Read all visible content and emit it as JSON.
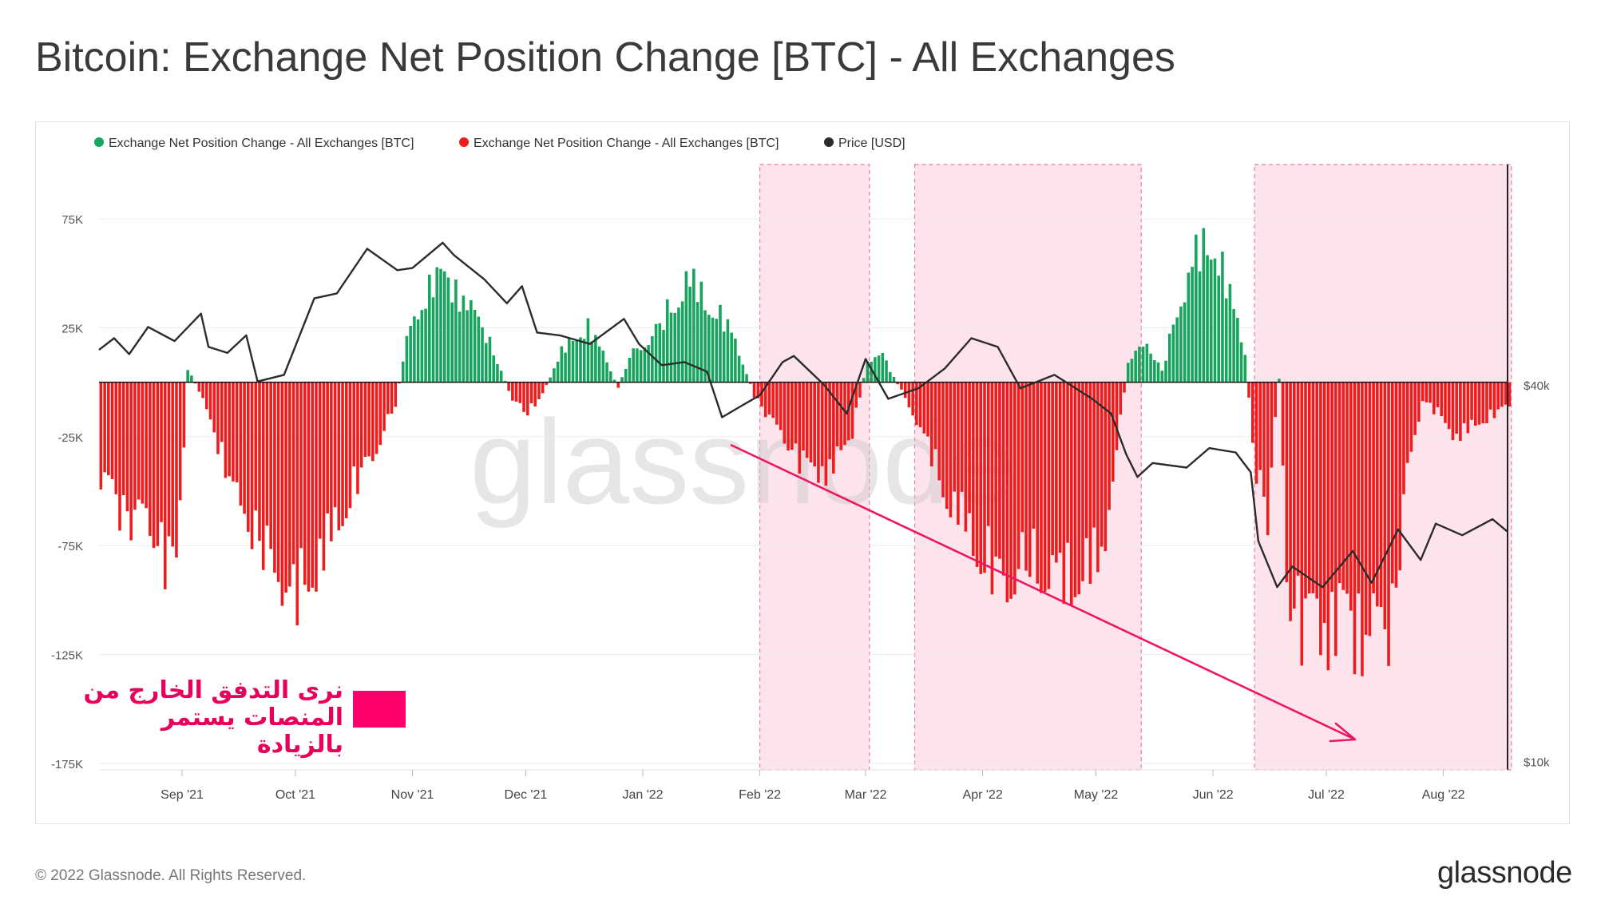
{
  "title": "Bitcoin: Exchange Net Position Change [BTC] - All Exchanges",
  "footer": {
    "copyright": "© 2022 Glassnode. All Rights Reserved.",
    "logo": "glassnode"
  },
  "watermark": "glassnode",
  "annotation": {
    "text_line1": "نرى التدفق الخارج من",
    "text_line2": "المنصات يستمر بالزيادة",
    "color": "#ff006a"
  },
  "colors": {
    "positive": "#17a45c",
    "negative": "#ee1c1c",
    "price": "#2b2b2b",
    "highlight": "#fde4ec",
    "highlight_border": "#f07a9e",
    "arrow": "#ee1565"
  },
  "chart_data": {
    "type": "bar",
    "legend": [
      {
        "label": "Exchange Net Position Change - All Exchanges [BTC]",
        "color": "#17a45c"
      },
      {
        "label": "Exchange Net Position Change - All Exchanges [BTC]",
        "color": "#ee1c1c"
      },
      {
        "label": "Price [USD]",
        "color": "#2b2b2b"
      }
    ],
    "legend_position": "top-left",
    "x_ticks": [
      "Sep '21",
      "Oct '21",
      "Nov '21",
      "Dec '21",
      "Jan '22",
      "Feb '22",
      "Mar '22",
      "Apr '22",
      "May '22",
      "Jun '22",
      "Jul '22",
      "Aug '22"
    ],
    "y_left": {
      "ticks": [
        "75K",
        "25K",
        "-25K",
        "-75K",
        "-125K",
        "-175K"
      ],
      "range": [
        -178000,
        100000
      ]
    },
    "y_right": {
      "ticks": [
        "$40k",
        "$10k"
      ],
      "scale": "log",
      "range": [
        9700,
        90000
      ]
    },
    "date_range": [
      "2021-08-10",
      "2022-08-18"
    ],
    "net_position_knots": [
      {
        "date": "2021-08-10",
        "value": -48000
      },
      {
        "date": "2021-08-17",
        "value": -62000
      },
      {
        "date": "2021-08-24",
        "value": -70000
      },
      {
        "date": "2021-08-30",
        "value": -92000
      },
      {
        "date": "2021-09-02",
        "value": 6000
      },
      {
        "date": "2021-09-05",
        "value": -4000
      },
      {
        "date": "2021-09-10",
        "value": -28000
      },
      {
        "date": "2021-09-16",
        "value": -58000
      },
      {
        "date": "2021-09-23",
        "value": -78000
      },
      {
        "date": "2021-09-30",
        "value": -98000
      },
      {
        "date": "2021-10-08",
        "value": -76000
      },
      {
        "date": "2021-10-15",
        "value": -50000
      },
      {
        "date": "2021-10-22",
        "value": -28000
      },
      {
        "date": "2021-10-27",
        "value": -10000
      },
      {
        "date": "2021-10-30",
        "value": 18000
      },
      {
        "date": "2021-11-06",
        "value": 46000
      },
      {
        "date": "2021-11-12",
        "value": 42000
      },
      {
        "date": "2021-11-20",
        "value": 22000
      },
      {
        "date": "2021-11-27",
        "value": -8000
      },
      {
        "date": "2021-12-01",
        "value": -14000
      },
      {
        "date": "2021-12-05",
        "value": -5000
      },
      {
        "date": "2021-12-10",
        "value": 14000
      },
      {
        "date": "2021-12-17",
        "value": 26000
      },
      {
        "date": "2021-12-22",
        "value": 10000
      },
      {
        "date": "2021-12-25",
        "value": -3000
      },
      {
        "date": "2021-12-28",
        "value": 12000
      },
      {
        "date": "2022-01-05",
        "value": 26000
      },
      {
        "date": "2022-01-12",
        "value": 48000
      },
      {
        "date": "2022-01-19",
        "value": 36000
      },
      {
        "date": "2022-01-25",
        "value": 20000
      },
      {
        "date": "2022-01-30",
        "value": -6000
      },
      {
        "date": "2022-02-05",
        "value": -22000
      },
      {
        "date": "2022-02-12",
        "value": -38000
      },
      {
        "date": "2022-02-19",
        "value": -42000
      },
      {
        "date": "2022-02-25",
        "value": -22000
      },
      {
        "date": "2022-03-01",
        "value": 10000
      },
      {
        "date": "2022-03-05",
        "value": 12000
      },
      {
        "date": "2022-03-10",
        "value": -4000
      },
      {
        "date": "2022-03-15",
        "value": -20000
      },
      {
        "date": "2022-03-22",
        "value": -50000
      },
      {
        "date": "2022-03-30",
        "value": -72000
      },
      {
        "date": "2022-04-05",
        "value": -88000
      },
      {
        "date": "2022-04-12",
        "value": -80000
      },
      {
        "date": "2022-04-19",
        "value": -85000
      },
      {
        "date": "2022-04-26",
        "value": -88000
      },
      {
        "date": "2022-05-02",
        "value": -78000
      },
      {
        "date": "2022-05-06",
        "value": -32000
      },
      {
        "date": "2022-05-09",
        "value": 10000
      },
      {
        "date": "2022-05-14",
        "value": 18000
      },
      {
        "date": "2022-05-18",
        "value": 5000
      },
      {
        "date": "2022-05-21",
        "value": 26000
      },
      {
        "date": "2022-05-26",
        "value": 56000
      },
      {
        "date": "2022-06-01",
        "value": 66000
      },
      {
        "date": "2022-06-05",
        "value": 40000
      },
      {
        "date": "2022-06-09",
        "value": 15000
      },
      {
        "date": "2022-06-11",
        "value": -32000
      },
      {
        "date": "2022-06-15",
        "value": -62000
      },
      {
        "date": "2022-06-18",
        "value": 2000
      },
      {
        "date": "2022-06-20",
        "value": -95000
      },
      {
        "date": "2022-06-26",
        "value": -118000
      },
      {
        "date": "2022-07-04",
        "value": -112000
      },
      {
        "date": "2022-07-12",
        "value": -118000
      },
      {
        "date": "2022-07-18",
        "value": -110000
      },
      {
        "date": "2022-07-22",
        "value": -42000
      },
      {
        "date": "2022-07-26",
        "value": -8000
      },
      {
        "date": "2022-07-30",
        "value": -14000
      },
      {
        "date": "2022-08-04",
        "value": -25000
      },
      {
        "date": "2022-08-10",
        "value": -18000
      },
      {
        "date": "2022-08-18",
        "value": -10000
      }
    ],
    "price_usd": [
      {
        "date": "2021-08-10",
        "value": 45500
      },
      {
        "date": "2021-08-14",
        "value": 47500
      },
      {
        "date": "2021-08-18",
        "value": 44800
      },
      {
        "date": "2021-08-23",
        "value": 49500
      },
      {
        "date": "2021-08-30",
        "value": 47000
      },
      {
        "date": "2021-09-06",
        "value": 52000
      },
      {
        "date": "2021-09-08",
        "value": 46000
      },
      {
        "date": "2021-09-13",
        "value": 45000
      },
      {
        "date": "2021-09-18",
        "value": 48000
      },
      {
        "date": "2021-09-21",
        "value": 40500
      },
      {
        "date": "2021-09-28",
        "value": 41500
      },
      {
        "date": "2021-10-06",
        "value": 55000
      },
      {
        "date": "2021-10-12",
        "value": 56000
      },
      {
        "date": "2021-10-20",
        "value": 66000
      },
      {
        "date": "2021-10-28",
        "value": 61000
      },
      {
        "date": "2021-11-01",
        "value": 61500
      },
      {
        "date": "2021-11-09",
        "value": 67500
      },
      {
        "date": "2021-11-12",
        "value": 64500
      },
      {
        "date": "2021-11-20",
        "value": 59000
      },
      {
        "date": "2021-11-26",
        "value": 54000
      },
      {
        "date": "2021-11-30",
        "value": 57500
      },
      {
        "date": "2021-12-04",
        "value": 48500
      },
      {
        "date": "2021-12-10",
        "value": 48000
      },
      {
        "date": "2021-12-18",
        "value": 46500
      },
      {
        "date": "2021-12-27",
        "value": 51000
      },
      {
        "date": "2021-12-31",
        "value": 46500
      },
      {
        "date": "2022-01-06",
        "value": 43000
      },
      {
        "date": "2022-01-12",
        "value": 43500
      },
      {
        "date": "2022-01-18",
        "value": 42000
      },
      {
        "date": "2022-01-22",
        "value": 35500
      },
      {
        "date": "2022-01-27",
        "value": 37000
      },
      {
        "date": "2022-02-01",
        "value": 38500
      },
      {
        "date": "2022-02-07",
        "value": 43500
      },
      {
        "date": "2022-02-10",
        "value": 44500
      },
      {
        "date": "2022-02-18",
        "value": 40000
      },
      {
        "date": "2022-02-24",
        "value": 36000
      },
      {
        "date": "2022-03-01",
        "value": 44000
      },
      {
        "date": "2022-03-07",
        "value": 38000
      },
      {
        "date": "2022-03-15",
        "value": 39500
      },
      {
        "date": "2022-03-22",
        "value": 42500
      },
      {
        "date": "2022-03-29",
        "value": 47500
      },
      {
        "date": "2022-04-05",
        "value": 46000
      },
      {
        "date": "2022-04-11",
        "value": 39500
      },
      {
        "date": "2022-04-20",
        "value": 41500
      },
      {
        "date": "2022-04-30",
        "value": 38000
      },
      {
        "date": "2022-05-05",
        "value": 36000
      },
      {
        "date": "2022-05-09",
        "value": 31000
      },
      {
        "date": "2022-05-12",
        "value": 28500
      },
      {
        "date": "2022-05-16",
        "value": 30000
      },
      {
        "date": "2022-05-25",
        "value": 29500
      },
      {
        "date": "2022-05-31",
        "value": 31700
      },
      {
        "date": "2022-06-07",
        "value": 31200
      },
      {
        "date": "2022-06-11",
        "value": 29000
      },
      {
        "date": "2022-06-13",
        "value": 22500
      },
      {
        "date": "2022-06-18",
        "value": 19000
      },
      {
        "date": "2022-06-22",
        "value": 20500
      },
      {
        "date": "2022-06-30",
        "value": 19000
      },
      {
        "date": "2022-07-08",
        "value": 21700
      },
      {
        "date": "2022-07-13",
        "value": 19300
      },
      {
        "date": "2022-07-20",
        "value": 23500
      },
      {
        "date": "2022-07-26",
        "value": 21000
      },
      {
        "date": "2022-07-30",
        "value": 24000
      },
      {
        "date": "2022-08-06",
        "value": 23000
      },
      {
        "date": "2022-08-14",
        "value": 24400
      },
      {
        "date": "2022-08-18",
        "value": 23300
      }
    ],
    "highlight_ranges": [
      [
        "2022-02-01",
        "2022-03-02"
      ],
      [
        "2022-03-14",
        "2022-05-13"
      ],
      [
        "2022-06-12",
        "2022-08-19"
      ]
    ]
  }
}
